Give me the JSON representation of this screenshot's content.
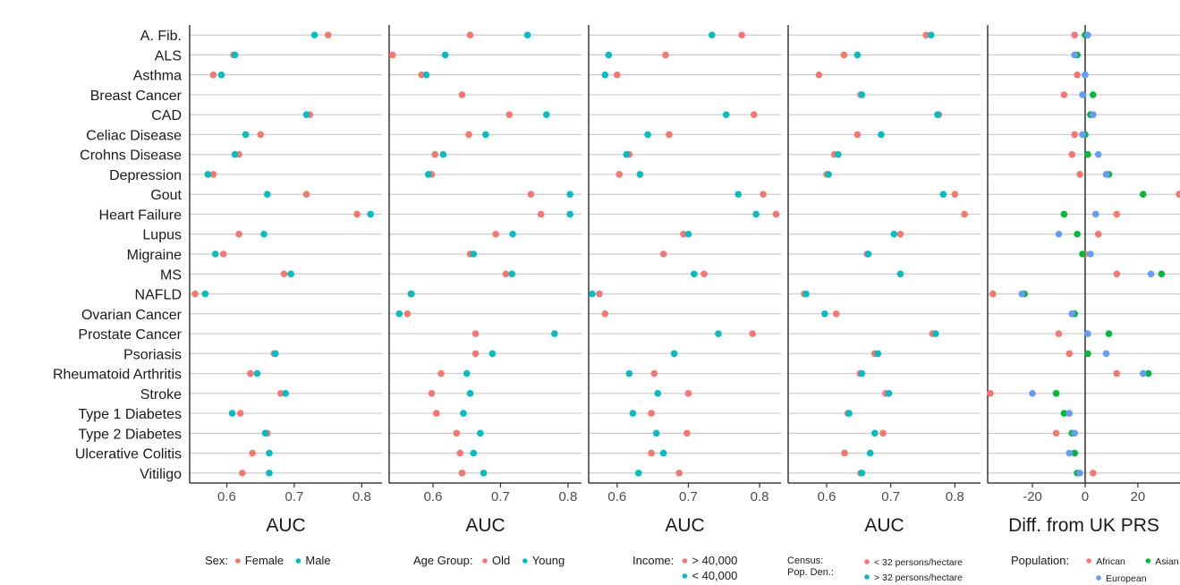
{
  "chart_data": {
    "type": "scatter",
    "categories": [
      "A. Fib.",
      "ALS",
      "Asthma",
      "Breast Cancer",
      "CAD",
      "Celiac Disease",
      "Crohns Disease",
      "Depression",
      "Gout",
      "Heart Failure",
      "Lupus",
      "Migraine",
      "MS",
      "NAFLD",
      "Ovarian Cancer",
      "Prostate Cancer",
      "Psoriasis",
      "Rheumatoid Arthritis",
      "Stroke",
      "Type 1 Diabetes",
      "Type 2 Diabetes",
      "Ulcerative Colitis",
      "Vitiligo"
    ],
    "panels": [
      {
        "xlabel": "AUC",
        "xlim": [
          0.545,
          0.83
        ],
        "xticks": [
          0.6,
          0.7,
          0.8
        ],
        "xtick_labels": [
          "0.6",
          "0.7",
          "0.8"
        ],
        "legend_title": "Sex:",
        "series": [
          {
            "name": "Female",
            "color": "#F8766D",
            "values": [
              0.75,
              0.61,
              0.58,
              null,
              0.723,
              0.65,
              0.618,
              0.58,
              0.718,
              0.793,
              0.618,
              0.595,
              0.685,
              0.553,
              null,
              null,
              0.67,
              0.635,
              0.68,
              0.62,
              0.66,
              0.638,
              0.623
            ]
          },
          {
            "name": "Male",
            "color": "#00BFC4",
            "values": [
              0.73,
              0.612,
              0.592,
              null,
              0.718,
              0.628,
              0.612,
              0.572,
              0.66,
              0.813,
              0.655,
              0.583,
              0.695,
              0.568,
              null,
              null,
              0.672,
              0.645,
              0.687,
              0.608,
              0.657,
              0.663,
              0.663
            ]
          }
        ]
      },
      {
        "xlabel": "AUC",
        "xlim": [
          0.535,
          0.82
        ],
        "xticks": [
          0.6,
          0.7,
          0.8
        ],
        "xtick_labels": [
          "0.6",
          "0.7",
          "0.8"
        ],
        "legend_title": "Age Group:",
        "series": [
          {
            "name": "Old",
            "color": "#F8766D",
            "values": [
              0.655,
              0.54,
              0.583,
              0.643,
              0.713,
              0.653,
              0.603,
              0.598,
              0.745,
              0.76,
              0.693,
              0.655,
              0.708,
              0.567,
              0.562,
              0.663,
              0.663,
              0.612,
              0.598,
              0.605,
              0.635,
              0.64,
              0.643
            ]
          },
          {
            "name": "Young",
            "color": "#00BFC4",
            "values": [
              0.74,
              0.618,
              0.59,
              null,
              0.768,
              0.678,
              0.615,
              0.593,
              0.803,
              0.803,
              0.718,
              0.66,
              0.717,
              0.568,
              0.55,
              0.78,
              0.688,
              0.65,
              0.655,
              0.645,
              0.67,
              0.66,
              0.675
            ]
          }
        ]
      },
      {
        "xlabel": "AUC",
        "xlim": [
          0.56,
          0.83
        ],
        "xticks": [
          0.6,
          0.7,
          0.8
        ],
        "xtick_labels": [
          "0.6",
          "0.7",
          "0.8"
        ],
        "legend_title": "Income:",
        "series": [
          {
            "name": "> 40,000",
            "color": "#F8766D",
            "values": [
              0.775,
              0.668,
              0.6,
              null,
              0.792,
              0.673,
              0.617,
              0.603,
              0.805,
              0.823,
              0.693,
              0.665,
              0.722,
              0.575,
              0.583,
              0.79,
              0.68,
              0.652,
              0.7,
              0.648,
              0.698,
              0.648,
              0.687
            ]
          },
          {
            "name": "< 40,000",
            "color": "#00BFC4",
            "values": [
              0.733,
              0.588,
              0.583,
              null,
              0.753,
              0.643,
              0.613,
              0.632,
              0.77,
              0.795,
              0.7,
              null,
              0.708,
              0.565,
              null,
              0.742,
              0.68,
              0.617,
              0.657,
              0.622,
              0.655,
              0.665,
              0.63
            ]
          }
        ]
      },
      {
        "xlabel": "AUC",
        "xlim": [
          0.54,
          0.84
        ],
        "xticks": [
          0.6,
          0.7,
          0.8
        ],
        "xtick_labels": [
          "0.6",
          "0.7",
          "0.8"
        ],
        "legend_title": "Census:\nPop. Den.:",
        "series": [
          {
            "name": "< 32 persons/hectare",
            "color": "#F8766D",
            "values": [
              0.755,
              0.627,
              0.588,
              0.653,
              0.775,
              0.648,
              0.612,
              0.6,
              0.8,
              0.815,
              0.715,
              0.663,
              0.715,
              0.565,
              0.615,
              0.765,
              0.675,
              0.652,
              0.692,
              0.633,
              0.688,
              0.628,
              0.653
            ]
          },
          {
            "name": "> 32 persons/hectare",
            "color": "#00BFC4",
            "values": [
              0.763,
              0.648,
              null,
              0.655,
              0.773,
              0.685,
              0.618,
              0.603,
              0.782,
              null,
              0.705,
              0.665,
              0.715,
              0.568,
              0.597,
              0.77,
              0.68,
              0.655,
              0.697,
              0.635,
              0.675,
              0.668,
              0.655
            ]
          }
        ]
      },
      {
        "xlabel": "Diff. from UK PRS",
        "xlim": [
          -37,
          36
        ],
        "xticks": [
          -20,
          0,
          20
        ],
        "xtick_labels": [
          "-20",
          "0",
          "20"
        ],
        "vline": 0,
        "legend_title": "Population:",
        "series": [
          {
            "name": "African",
            "color": "#F8766D",
            "values": [
              -4,
              -4,
              -3,
              -8,
              3,
              -4,
              -5,
              -2,
              37,
              12,
              5,
              0,
              12,
              -35,
              -5,
              -10,
              -6,
              12,
              -36,
              -6,
              -11,
              -4,
              3
            ]
          },
          {
            "name": "Asian",
            "color": "#00BA38",
            "values": [
              0,
              -3,
              0,
              3,
              2,
              0,
              1,
              9,
              22,
              -8,
              -3,
              -1,
              29,
              -23,
              -4,
              9,
              1,
              24,
              -11,
              -8,
              -5,
              -4,
              -3
            ]
          },
          {
            "name": "European",
            "color": "#619CFF",
            "values": [
              1,
              -4,
              0,
              -1,
              3,
              -1,
              5,
              8,
              null,
              4,
              -10,
              2,
              25,
              -24,
              -5,
              1,
              8,
              22,
              -20,
              -6,
              -4,
              -6,
              -2
            ]
          }
        ]
      }
    ]
  }
}
